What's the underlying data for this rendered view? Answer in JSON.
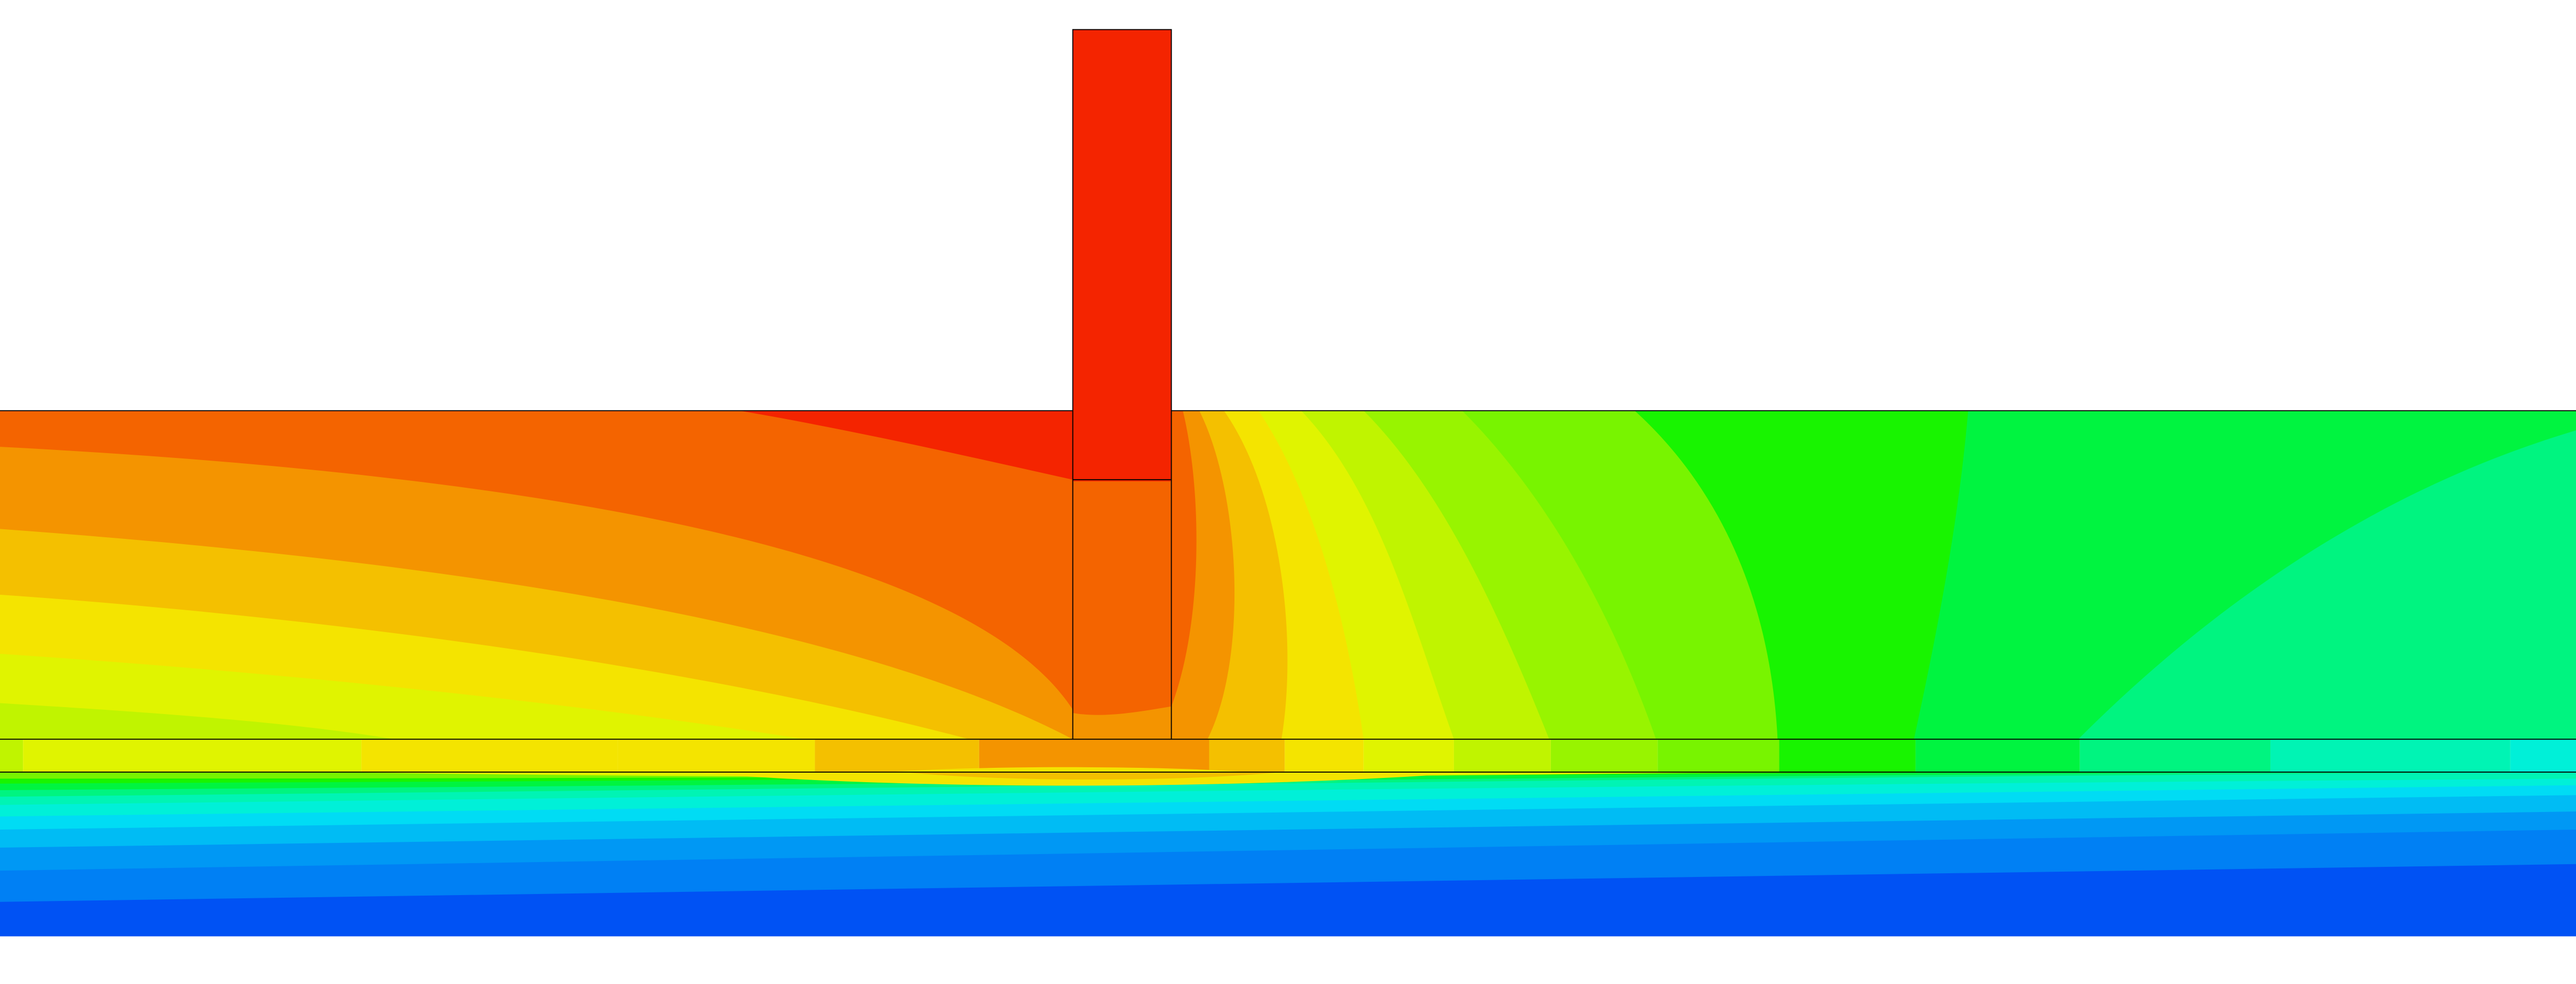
{
  "figure": {
    "kind": "filled-contour-field",
    "colormap": "rainbow",
    "colors": {
      "background": "#ffffff",
      "outline": "#000000",
      "bands": {
        "red": "#f42400",
        "red_orange": "#f46400",
        "orange": "#f49400",
        "yellow_orange": "#f4c000",
        "yellow": "#f4e400",
        "yellow_green": "#e0f400",
        "light_green": "#c0f400",
        "lime": "#98f400",
        "green_lime": "#78f400",
        "green": "#18f400",
        "spring_green": "#00f440",
        "mint": "#00f480",
        "aquamarine": "#00f4b4",
        "cyan_green": "#00f0d8",
        "cyan": "#00dcf4",
        "sky": "#00bcf4",
        "light_blue": "#0098f4",
        "azure": "#0080f4",
        "blue": "#0052f4"
      }
    },
    "regions": [
      {
        "name": "vertical-column",
        "band": "red",
        "lower_band": "red_orange"
      },
      {
        "name": "upper-slab-left",
        "band": "red_orange"
      },
      {
        "name": "upper-slab-right",
        "band": "green"
      },
      {
        "name": "interface-layer",
        "band": "yellow_orange"
      },
      {
        "name": "lower-slab",
        "band": "blue"
      }
    ]
  }
}
